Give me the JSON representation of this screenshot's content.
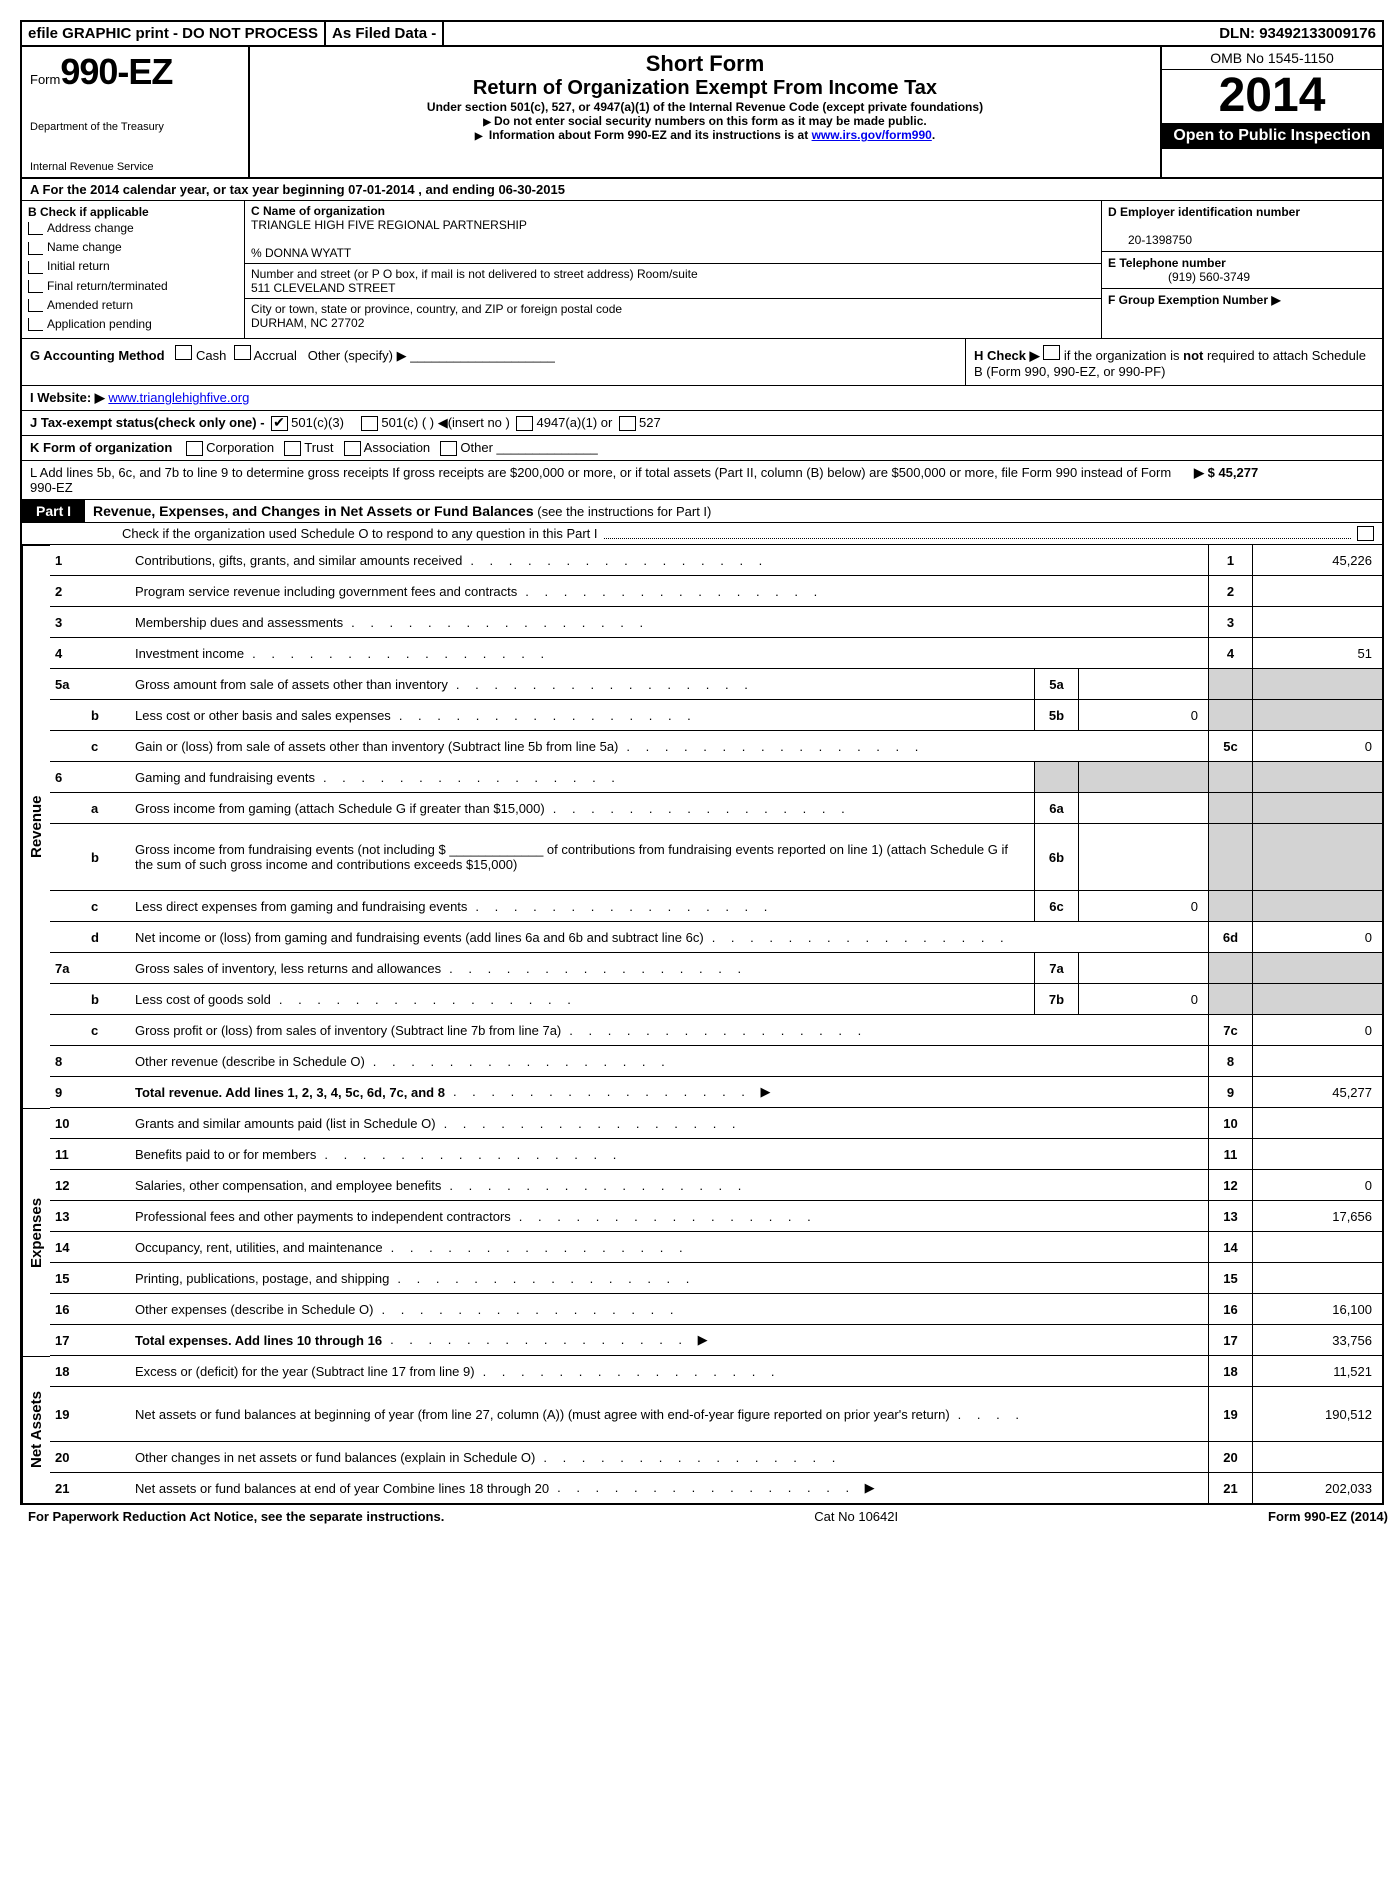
{
  "topbar": {
    "efile": "efile GRAPHIC print - DO NOT PROCESS",
    "asfiled": "As Filed Data -",
    "dln": "DLN: 93492133009176"
  },
  "header": {
    "form_word": "Form",
    "form_num": "990-EZ",
    "dept": "Department of the Treasury",
    "irs": "Internal Revenue Service",
    "short_form": "Short Form",
    "title": "Return of Organization Exempt From Income Tax",
    "subtitle": "Under section 501(c), 527, or 4947(a)(1) of the Internal Revenue Code (except private foundations)",
    "ssn_warn": "Do not enter social security numbers on this form as it may be made public.",
    "info_pre": "Information about Form 990-EZ and its instructions is at ",
    "info_link": "www.irs.gov/form990",
    "info_post": ".",
    "omb": "OMB No 1545-1150",
    "year": "2014",
    "open": "Open to Public Inspection"
  },
  "row_a": {
    "pre": "A  For the 2014 calendar year, or tax year beginning ",
    "begin": "07-01-2014",
    "mid": " , and ending ",
    "end": "06-30-2015"
  },
  "col_b": {
    "head": "B  Check if applicable",
    "items": [
      "Address change",
      "Name change",
      "Initial return",
      "Final return/terminated",
      "Amended return",
      "Application pending"
    ]
  },
  "col_c": {
    "c_label": "C Name of organization",
    "name": "TRIANGLE HIGH FIVE REGIONAL PARTNERSHIP",
    "care_of": "% DONNA WYATT",
    "street_label": "Number and street (or P  O  box, if mail is not delivered to street address) Room/suite",
    "street": "511 CLEVELAND STREET",
    "city_label": "City or town, state or province, country, and ZIP or foreign postal code",
    "city": "DURHAM, NC  27702"
  },
  "col_d": {
    "d_label": "D Employer identification number",
    "ein": "20-1398750",
    "e_label": "E Telephone number",
    "phone": "(919) 560-3749",
    "f_label": "F Group Exemption Number ▶"
  },
  "gh": {
    "g": "G Accounting Method",
    "g_cash": "Cash",
    "g_accrual": "Accrual",
    "g_other": "Other (specify) ▶",
    "h1": "H  Check ▶",
    "h2": " if the organization is ",
    "h_not": "not",
    "h3": " required to attach Schedule B (Form 990, 990-EZ, or 990-PF)"
  },
  "lines": {
    "i_label": "I Website: ▶",
    "i_url": "www.trianglehighfive.org",
    "j": "J Tax-exempt status(check only one) -",
    "j1": "501(c)(3)",
    "j2": "501(c) (  ) ◀(insert no )",
    "j3": "4947(a)(1) or",
    "j4": "527",
    "k": "K Form of organization",
    "k1": "Corporation",
    "k2": "Trust",
    "k3": "Association",
    "k4": "Other",
    "l1": "L Add lines 5b, 6c, and 7b to line 9 to determine gross receipts  If gross receipts are $200,000 or more, or if total assets (Part II, column (B) below) are $500,000 or more, file Form 990 instead of Form 990-EZ",
    "l_val": "▶ $ 45,277"
  },
  "part1": {
    "label": "Part I",
    "title": "Revenue, Expenses, and Changes in Net Assets or Fund Balances",
    "title_thin": " (see the instructions for Part I)",
    "schedo": "Check if the organization used Schedule O to respond to any question in this Part I"
  },
  "sidebar": {
    "revenue": "Revenue",
    "expenses": "Expenses",
    "netassets": "Net Assets"
  },
  "rows": [
    {
      "n": "1",
      "s": "",
      "d": "Contributions, gifts, grants, and similar amounts received",
      "mn": "",
      "mv": "",
      "rn": "1",
      "rv": "45,226"
    },
    {
      "n": "2",
      "s": "",
      "d": "Program service revenue including government fees and contracts",
      "mn": "",
      "mv": "",
      "rn": "2",
      "rv": ""
    },
    {
      "n": "3",
      "s": "",
      "d": "Membership dues and assessments",
      "mn": "",
      "mv": "",
      "rn": "3",
      "rv": ""
    },
    {
      "n": "4",
      "s": "",
      "d": "Investment income",
      "mn": "",
      "mv": "",
      "rn": "4",
      "rv": "51"
    },
    {
      "n": "5a",
      "s": "",
      "d": "Gross amount from sale of assets other than inventory",
      "mn": "5a",
      "mv": "",
      "rn": "shade",
      "rv": "shade"
    },
    {
      "n": "",
      "s": "b",
      "d": "Less  cost or other basis and sales expenses",
      "mn": "5b",
      "mv": "0",
      "rn": "shade",
      "rv": "shade"
    },
    {
      "n": "",
      "s": "c",
      "d": "Gain or (loss) from sale of assets other than inventory (Subtract line 5b from line 5a)",
      "mn": "",
      "mv": "",
      "rn": "5c",
      "rv": "0"
    },
    {
      "n": "6",
      "s": "",
      "d": "Gaming and fundraising events",
      "mn": "shade",
      "mv": "shade",
      "rn": "shade",
      "rv": "shade"
    },
    {
      "n": "",
      "s": "a",
      "d": "Gross income from gaming (attach Schedule G if greater than $15,000)",
      "mn": "6a",
      "mv": "",
      "rn": "shade",
      "rv": "shade"
    },
    {
      "n": "",
      "s": "b",
      "d": "Gross income from fundraising events (not including $ _____________ of contributions from fundraising events reported on line 1) (attach Schedule G if the sum of such gross income and contributions exceeds $15,000)",
      "mn": "6b",
      "mv": "",
      "rn": "shade",
      "rv": "shade",
      "tall": true
    },
    {
      "n": "",
      "s": "c",
      "d": "Less  direct expenses from gaming and fundraising events",
      "mn": "6c",
      "mv": "0",
      "rn": "shade",
      "rv": "shade"
    },
    {
      "n": "",
      "s": "d",
      "d": "Net income or (loss) from gaming and fundraising events (add lines 6a and 6b and subtract line 6c)",
      "mn": "",
      "mv": "",
      "rn": "6d",
      "rv": "0"
    },
    {
      "n": "7a",
      "s": "",
      "d": "Gross sales of inventory, less returns and allowances",
      "mn": "7a",
      "mv": "",
      "rn": "shade",
      "rv": "shade"
    },
    {
      "n": "",
      "s": "b",
      "d": "Less  cost of goods sold",
      "mn": "7b",
      "mv": "0",
      "rn": "shade",
      "rv": "shade"
    },
    {
      "n": "",
      "s": "c",
      "d": "Gross profit or (loss) from sales of inventory (Subtract line 7b from line 7a)",
      "mn": "",
      "mv": "",
      "rn": "7c",
      "rv": "0"
    },
    {
      "n": "8",
      "s": "",
      "d": "Other revenue (describe in Schedule O)",
      "mn": "",
      "mv": "",
      "rn": "8",
      "rv": ""
    },
    {
      "n": "9",
      "s": "",
      "d": "Total revenue. Add lines 1, 2, 3, 4, 5c, 6d, 7c, and 8",
      "mn": "",
      "mv": "",
      "rn": "9",
      "rv": "45,277",
      "bold": true,
      "arrow": true
    }
  ],
  "exp_rows": [
    {
      "n": "10",
      "d": "Grants and similar amounts paid (list in Schedule O)",
      "rn": "10",
      "rv": ""
    },
    {
      "n": "11",
      "d": "Benefits paid to or for members",
      "rn": "11",
      "rv": ""
    },
    {
      "n": "12",
      "d": "Salaries, other compensation, and employee benefits",
      "rn": "12",
      "rv": "0"
    },
    {
      "n": "13",
      "d": "Professional fees and other payments to independent contractors",
      "rn": "13",
      "rv": "17,656"
    },
    {
      "n": "14",
      "d": "Occupancy, rent, utilities, and maintenance",
      "rn": "14",
      "rv": ""
    },
    {
      "n": "15",
      "d": "Printing, publications, postage, and shipping",
      "rn": "15",
      "rv": ""
    },
    {
      "n": "16",
      "d": "Other expenses (describe in Schedule O)",
      "rn": "16",
      "rv": "16,100"
    },
    {
      "n": "17",
      "d": "Total expenses. Add lines 10 through 16",
      "rn": "17",
      "rv": "33,756",
      "bold": true,
      "arrow": true
    }
  ],
  "na_rows": [
    {
      "n": "18",
      "d": "Excess or (deficit) for the year (Subtract line 17 from line 9)",
      "rn": "18",
      "rv": "11,521"
    },
    {
      "n": "19",
      "d": "Net assets or fund balances at beginning of year (from line 27, column (A)) (must agree with end-of-year figure reported on prior year's return)",
      "rn": "19",
      "rv": "190,512",
      "tall": true
    },
    {
      "n": "20",
      "d": "Other changes in net assets or fund balances (explain in Schedule O)",
      "rn": "20",
      "rv": ""
    },
    {
      "n": "21",
      "d": "Net assets or fund balances at end of year  Combine lines 18 through 20",
      "rn": "21",
      "rv": "202,033",
      "arrow": true
    }
  ],
  "footer": {
    "left": "For Paperwork Reduction Act Notice, see the separate instructions.",
    "mid": "Cat No 10642I",
    "right": "Form 990-EZ (2014)"
  }
}
